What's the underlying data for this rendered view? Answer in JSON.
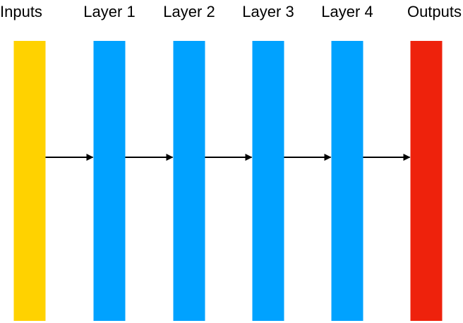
{
  "diagram": {
    "stages": [
      {
        "label": "Inputs",
        "color": "#FFD200",
        "role": "input"
      },
      {
        "label": "Layer 1",
        "color": "#00A2FF",
        "role": "hidden"
      },
      {
        "label": "Layer 2",
        "color": "#00A2FF",
        "role": "hidden"
      },
      {
        "label": "Layer 3",
        "color": "#00A2FF",
        "role": "hidden"
      },
      {
        "label": "Layer 4",
        "color": "#00A2FF",
        "role": "hidden"
      },
      {
        "label": "Outputs",
        "color": "#EE220C",
        "role": "output"
      }
    ],
    "arrow_color": "#000000"
  }
}
